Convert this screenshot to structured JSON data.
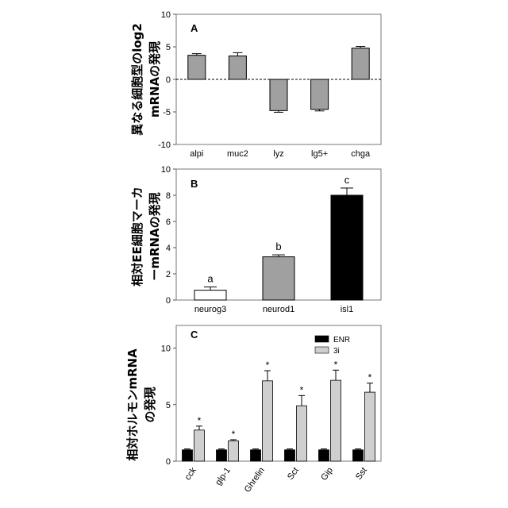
{
  "chart_data": [
    {
      "type": "bar",
      "panel": "A",
      "ylabel": [
        "異なる細胞型のlog2",
        "mRNAの発現"
      ],
      "categories": [
        "alpi",
        "muc2",
        "lyz",
        "lg5+",
        "chga"
      ],
      "values": [
        3.7,
        3.6,
        -4.8,
        -4.6,
        4.8
      ],
      "errors": [
        0.25,
        0.5,
        0.25,
        0.25,
        0.25
      ],
      "ylim": [
        -10,
        10
      ],
      "yticks": [
        10,
        5,
        0,
        -5,
        -10
      ],
      "bar_color": "#a0a0a0",
      "zero_line": "dashed"
    },
    {
      "type": "bar",
      "panel": "B",
      "ylabel": [
        "相対EE細胞マーカ",
        "ーmRNAの発現"
      ],
      "categories": [
        "neurog3",
        "neurod1",
        "isl1"
      ],
      "values": [
        0.75,
        3.3,
        8.0
      ],
      "errors": [
        0.25,
        0.15,
        0.55
      ],
      "letters": [
        "a",
        "b",
        "c"
      ],
      "bar_colors": [
        "#ffffff",
        "#a0a0a0",
        "#000000"
      ],
      "ylim": [
        0,
        10
      ],
      "yticks": [
        10,
        8,
        6,
        4,
        2,
        0
      ]
    },
    {
      "type": "bar",
      "panel": "C",
      "ylabel": [
        "相対ホルモンmRNA",
        "の発現"
      ],
      "categories": [
        "cck",
        "glp-1",
        "Ghrelin",
        "Sct",
        "Gip",
        "Sst"
      ],
      "series": [
        {
          "name": "ENR",
          "values": [
            1.0,
            1.0,
            1.0,
            1.0,
            1.0,
            1.0
          ],
          "errors": [
            0.08,
            0.08,
            0.08,
            0.08,
            0.08,
            0.08
          ],
          "color": "#000000"
        },
        {
          "name": "3i",
          "values": [
            2.75,
            1.8,
            7.1,
            4.9,
            7.15,
            6.1
          ],
          "errors": [
            0.35,
            0.1,
            0.9,
            0.9,
            0.9,
            0.8
          ],
          "color": "#cfcfcf"
        }
      ],
      "significance": [
        "*",
        "*",
        "*",
        "*",
        "*",
        "*"
      ],
      "ylim": [
        0,
        12
      ],
      "yticks": [
        10,
        5,
        0
      ],
      "legend": "top-right"
    }
  ]
}
